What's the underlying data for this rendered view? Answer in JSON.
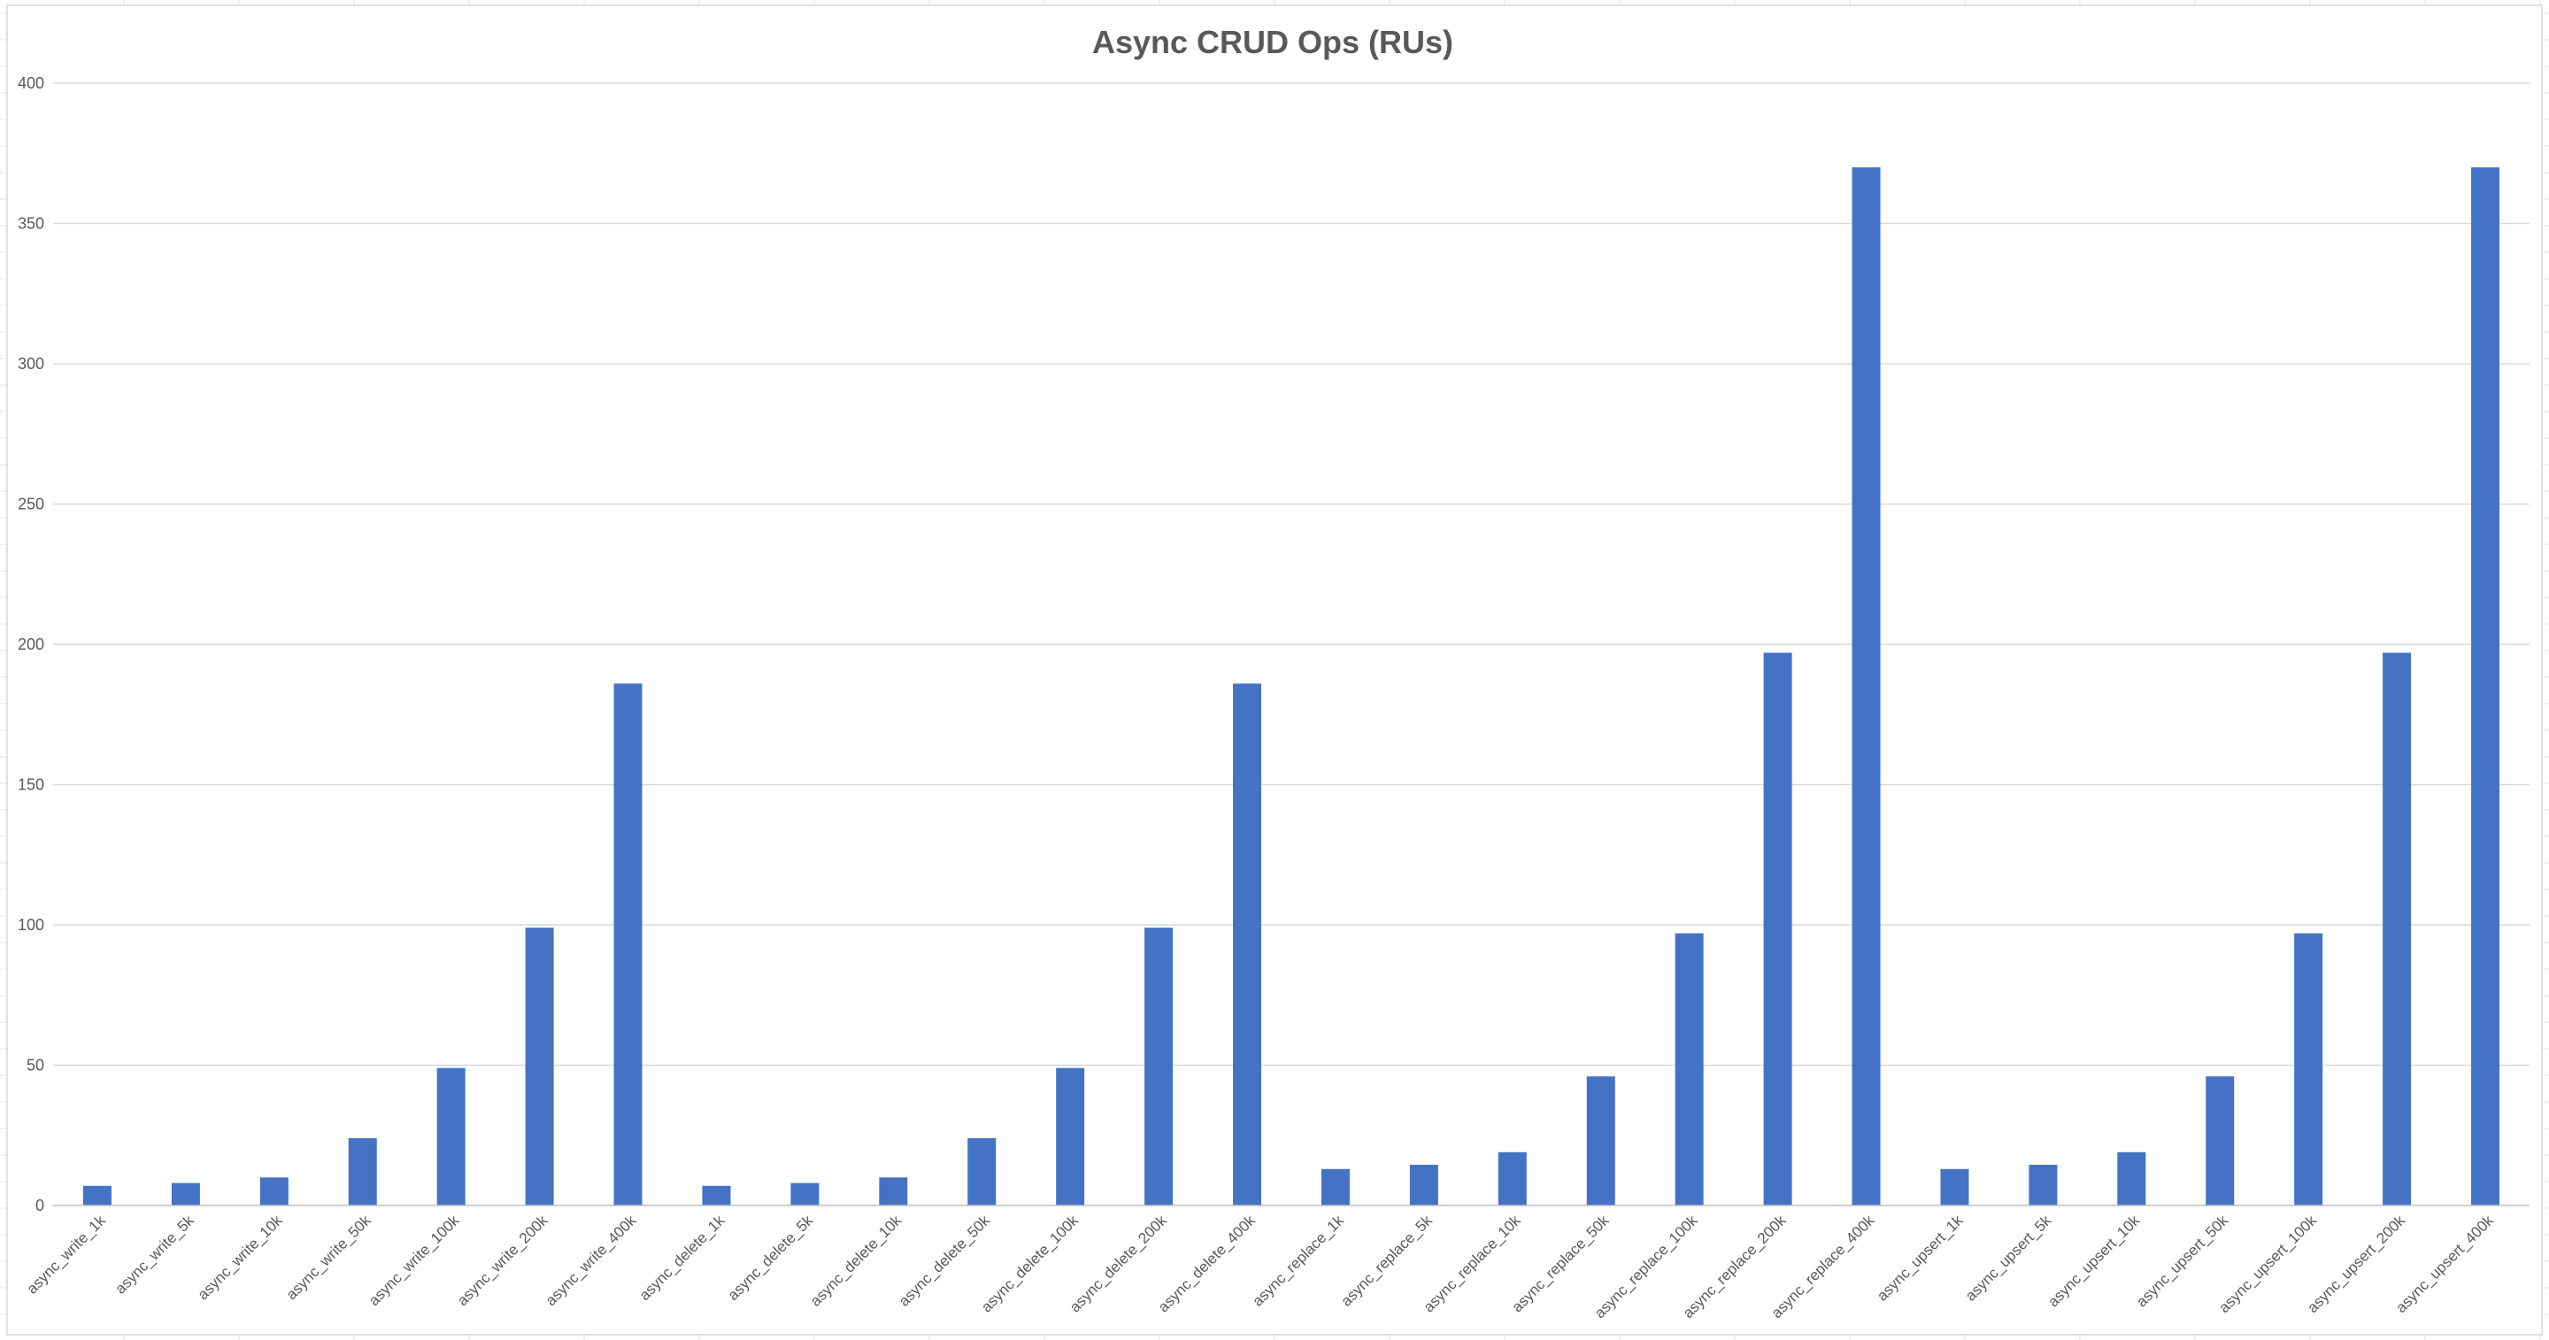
{
  "chart_data": {
    "type": "bar",
    "title": "Async CRUD Ops (RUs)",
    "xlabel": "",
    "ylabel": "",
    "ylim": [
      0,
      400
    ],
    "yticks": [
      0,
      50,
      100,
      150,
      200,
      250,
      300,
      350,
      400
    ],
    "grid": true,
    "legend": "none",
    "bar_color": "#4472c4",
    "categories": [
      "async_write_1k",
      "async_write_5k",
      "async_write_10k",
      "async_write_50k",
      "async_write_100k",
      "async_write_200k",
      "async_write_400k",
      "async_delete_1k",
      "async_delete_5k",
      "async_delete_10k",
      "async_delete_50k",
      "async_delete_100k",
      "async_delete_200k",
      "async_delete_400k",
      "async_replace_1k",
      "async_replace_5k",
      "async_replace_10k",
      "async_replace_50k",
      "async_replace_100k",
      "async_replace_200k",
      "async_replace_400k",
      "async_upsert_1k",
      "async_upsert_5k",
      "async_upsert_10k",
      "async_upsert_50k",
      "async_upsert_100k",
      "async_upsert_200k",
      "async_upsert_400k"
    ],
    "values": [
      7,
      8,
      10,
      24,
      49,
      99,
      186,
      7,
      8,
      10,
      24,
      49,
      99,
      186,
      13,
      14.5,
      19,
      46,
      97,
      197,
      370,
      13,
      14.5,
      19,
      46,
      97,
      197,
      370
    ]
  }
}
